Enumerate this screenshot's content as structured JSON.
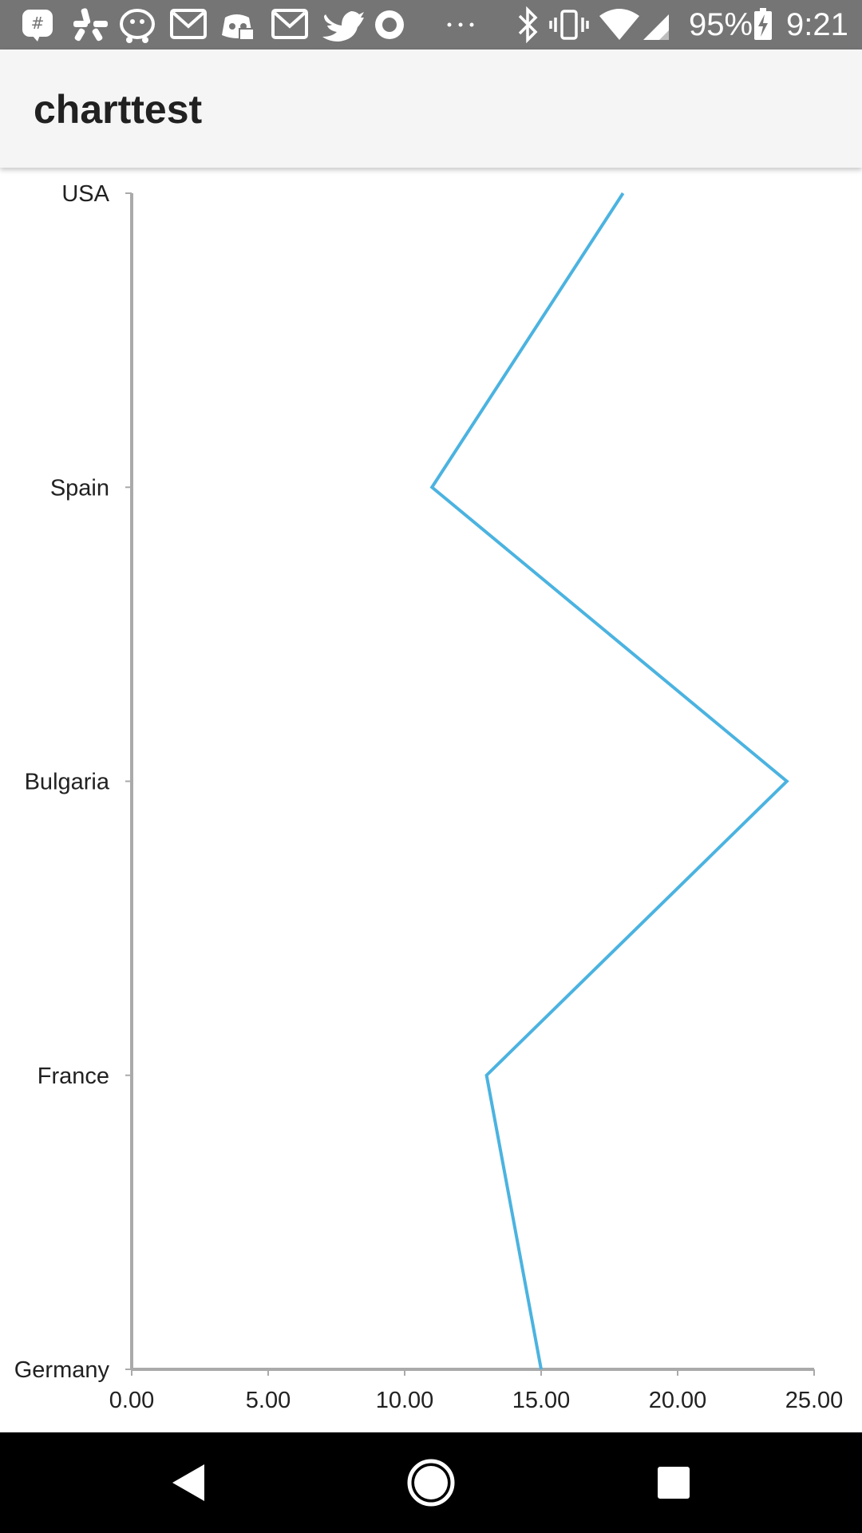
{
  "status_bar": {
    "battery_percent": "95%",
    "time": "9:21",
    "icons": [
      "notification-icon",
      "yelp-icon",
      "waze-icon",
      "gmail-icon",
      "discord-icon",
      "gmail-icon",
      "twitter-icon",
      "record-icon",
      "more-dots-icon",
      "bluetooth-icon",
      "vibrate-icon",
      "wifi-icon",
      "signal-icon",
      "battery-charging-icon"
    ]
  },
  "app_bar": {
    "title": "charttest"
  },
  "chart_data": {
    "type": "line",
    "orientation": "horizontal",
    "categories": [
      "Germany",
      "France",
      "Bulgaria",
      "Spain",
      "USA"
    ],
    "series": [
      {
        "values": [
          15,
          13,
          24,
          11,
          18
        ],
        "color": "#4bb3e0"
      }
    ],
    "x_ticks": [
      "0.00",
      "5.00",
      "10.00",
      "15.00",
      "20.00",
      "25.00"
    ],
    "xlim": [
      0,
      25
    ],
    "grid": false
  },
  "nav_bar": {
    "buttons": [
      "back-icon",
      "home-icon",
      "recents-icon"
    ]
  },
  "colors": {
    "status_bar": "#757575",
    "app_bar": "#f5f5f5",
    "axis": "#aaaaaa",
    "series": "#4bb3e0",
    "nav_bar": "#000000"
  }
}
